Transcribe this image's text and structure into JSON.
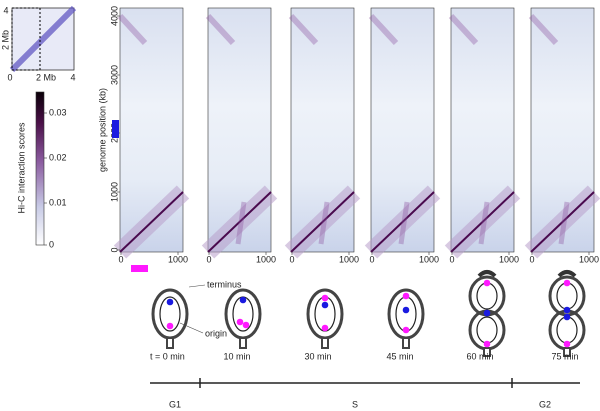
{
  "inset": {
    "left_ticks": [
      "4",
      "2 Mb"
    ],
    "bottom_ticks": [
      "0",
      "2 Mb",
      "4"
    ]
  },
  "colorbar": {
    "label": "Hi-C interaction scores",
    "ticks": [
      "0.03",
      "0.02",
      "0.01",
      "0"
    ]
  },
  "heatmaps": {
    "y_label": "genome position (kb)",
    "y_ticks": [
      "4000",
      "3000",
      "2000",
      "1000",
      "0"
    ],
    "x_ticks": [
      "0",
      "1000"
    ]
  },
  "cells": {
    "labels": [
      "terminus",
      "origin"
    ]
  },
  "times": [
    "t = 0 min",
    "10 min",
    "30 min",
    "45 min",
    "60 min",
    "75 min"
  ],
  "phases": [
    "G1",
    "S",
    "G2"
  ]
}
